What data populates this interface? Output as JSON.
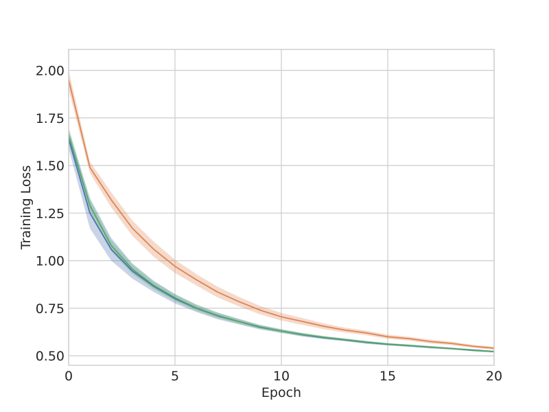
{
  "chart_data": {
    "type": "line",
    "title": "",
    "xlabel": "Epoch",
    "ylabel": "Training Loss",
    "xlim": [
      0,
      20
    ],
    "ylim": [
      0.45,
      2.11
    ],
    "grid": true,
    "legend": "none",
    "x_ticks": [
      0,
      5,
      10,
      15,
      20
    ],
    "x_tick_labels": [
      "0",
      "5",
      "10",
      "15",
      "20"
    ],
    "y_ticks": [
      0.5,
      0.75,
      1.0,
      1.25,
      1.5,
      1.75,
      2.0
    ],
    "y_tick_labels": [
      "0.50",
      "0.75",
      "1.00",
      "1.25",
      "1.50",
      "1.75",
      "2.00"
    ],
    "x": [
      0,
      1,
      2,
      3,
      4,
      5,
      6,
      7,
      8,
      9,
      10,
      11,
      12,
      13,
      14,
      15,
      16,
      17,
      18,
      19,
      20
    ],
    "series": [
      {
        "color": "#dd8452",
        "values": [
          1.95,
          1.49,
          1.32,
          1.17,
          1.06,
          0.97,
          0.9,
          0.835,
          0.785,
          0.74,
          0.705,
          0.68,
          0.655,
          0.635,
          0.62,
          0.6,
          0.59,
          0.575,
          0.565,
          0.55,
          0.54
        ],
        "band": [
          0.05,
          0.03,
          0.04,
          0.04,
          0.04,
          0.035,
          0.03,
          0.028,
          0.025,
          0.022,
          0.02,
          0.018,
          0.015,
          0.013,
          0.012,
          0.011,
          0.01,
          0.01,
          0.009,
          0.008,
          0.008
        ]
      },
      {
        "color": "#4c72b0",
        "values": [
          1.64,
          1.25,
          1.06,
          0.945,
          0.865,
          0.8,
          0.75,
          0.71,
          0.68,
          0.65,
          0.63,
          0.61,
          0.595,
          0.583,
          0.57,
          0.56,
          0.553,
          0.545,
          0.538,
          0.53,
          0.522
        ],
        "band": [
          0.05,
          0.08,
          0.06,
          0.04,
          0.03,
          0.025,
          0.02,
          0.018,
          0.015,
          0.012,
          0.01,
          0.009,
          0.008,
          0.007,
          0.007,
          0.006,
          0.006,
          0.006,
          0.005,
          0.005,
          0.005
        ]
      },
      {
        "color": "#55a868",
        "values": [
          1.66,
          1.29,
          1.08,
          0.955,
          0.87,
          0.805,
          0.752,
          0.712,
          0.68,
          0.652,
          0.63,
          0.612,
          0.597,
          0.585,
          0.572,
          0.562,
          0.554,
          0.546,
          0.538,
          0.528,
          0.522
        ],
        "band": [
          0.04,
          0.03,
          0.03,
          0.025,
          0.02,
          0.018,
          0.016,
          0.014,
          0.012,
          0.01,
          0.009,
          0.008,
          0.007,
          0.006,
          0.006,
          0.005,
          0.005,
          0.005,
          0.005,
          0.004,
          0.004
        ]
      }
    ]
  }
}
